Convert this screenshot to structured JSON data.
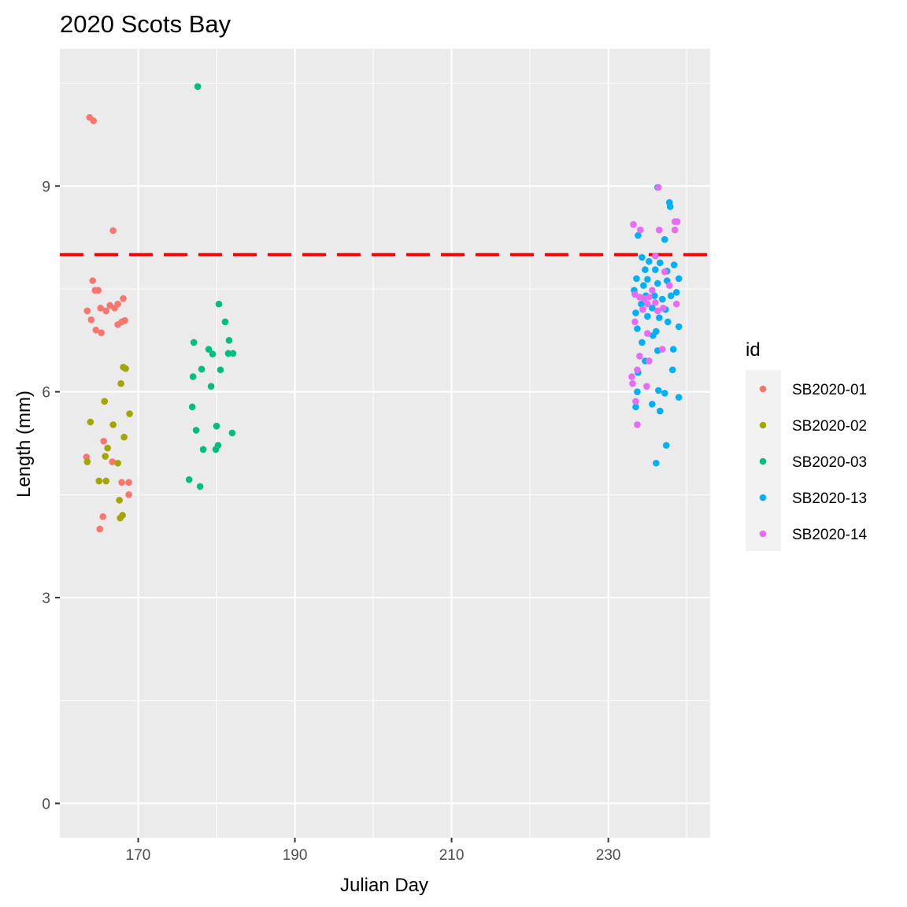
{
  "chart_data": {
    "type": "scatter",
    "title": "2020 Scots Bay",
    "xlabel": "Julian Day",
    "ylabel": "Length (mm)",
    "xlim": [
      160,
      243
    ],
    "ylim": [
      -0.5,
      11
    ],
    "x_ticks": [
      170,
      190,
      210,
      230
    ],
    "x_tick_labels": [
      "170",
      "190",
      "210",
      "230"
    ],
    "y_ticks": [
      0,
      3,
      6,
      9
    ],
    "y_tick_labels": [
      "0",
      "3",
      "6",
      "9"
    ],
    "grid": true,
    "panel_background": "#ebebeb",
    "reference_line": {
      "y": 8,
      "color": "#ff0000",
      "style": "dashed"
    },
    "legend": {
      "title": "id",
      "position": "right"
    },
    "series": [
      {
        "name": "SB2020-01",
        "color": "#f8766d",
        "points": [
          [
            163.8,
            10.0
          ],
          [
            164.3,
            9.95
          ],
          [
            166.8,
            8.35
          ],
          [
            164.2,
            7.62
          ],
          [
            164.5,
            7.48
          ],
          [
            164.9,
            7.48
          ],
          [
            163.5,
            7.18
          ],
          [
            164.0,
            7.05
          ],
          [
            165.2,
            7.22
          ],
          [
            165.9,
            7.18
          ],
          [
            166.4,
            7.26
          ],
          [
            167.0,
            7.22
          ],
          [
            167.4,
            7.28
          ],
          [
            168.1,
            7.36
          ],
          [
            164.6,
            6.9
          ],
          [
            165.3,
            6.86
          ],
          [
            167.4,
            6.98
          ],
          [
            167.9,
            7.02
          ],
          [
            168.3,
            7.04
          ],
          [
            163.4,
            5.05
          ],
          [
            166.7,
            4.98
          ],
          [
            165.6,
            5.28
          ],
          [
            167.9,
            4.68
          ],
          [
            168.8,
            4.68
          ],
          [
            168.8,
            4.5
          ],
          [
            165.5,
            4.18
          ],
          [
            165.1,
            4.0
          ]
        ]
      },
      {
        "name": "SB2020-02",
        "color": "#a3a500",
        "points": [
          [
            168.1,
            6.36
          ],
          [
            168.4,
            6.34
          ],
          [
            167.8,
            6.12
          ],
          [
            165.7,
            5.86
          ],
          [
            163.9,
            5.56
          ],
          [
            166.8,
            5.52
          ],
          [
            168.9,
            5.68
          ],
          [
            168.2,
            5.34
          ],
          [
            166.1,
            5.18
          ],
          [
            165.8,
            5.06
          ],
          [
            163.5,
            4.98
          ],
          [
            167.4,
            4.96
          ],
          [
            165.0,
            4.7
          ],
          [
            165.9,
            4.7
          ],
          [
            167.6,
            4.42
          ],
          [
            168.0,
            4.2
          ],
          [
            167.7,
            4.16
          ]
        ]
      },
      {
        "name": "SB2020-03",
        "color": "#00bf7d",
        "points": [
          [
            177.6,
            10.45
          ],
          [
            180.3,
            7.28
          ],
          [
            181.1,
            7.02
          ],
          [
            177.1,
            6.72
          ],
          [
            181.6,
            6.75
          ],
          [
            179.0,
            6.62
          ],
          [
            179.5,
            6.55
          ],
          [
            181.5,
            6.56
          ],
          [
            182.1,
            6.56
          ],
          [
            178.1,
            6.33
          ],
          [
            180.5,
            6.32
          ],
          [
            177.0,
            6.22
          ],
          [
            179.3,
            6.08
          ],
          [
            176.9,
            5.78
          ],
          [
            177.4,
            5.44
          ],
          [
            180.0,
            5.5
          ],
          [
            182.0,
            5.4
          ],
          [
            180.2,
            5.22
          ],
          [
            178.3,
            5.16
          ],
          [
            179.9,
            5.16
          ],
          [
            176.5,
            4.72
          ],
          [
            177.9,
            4.62
          ]
        ]
      },
      {
        "name": "SB2020-13",
        "color": "#00b0f6",
        "points": [
          [
            236.3,
            8.98
          ],
          [
            237.8,
            8.76
          ],
          [
            237.9,
            8.7
          ],
          [
            233.8,
            8.28
          ],
          [
            237.2,
            8.22
          ],
          [
            234.3,
            7.96
          ],
          [
            235.2,
            7.9
          ],
          [
            236.6,
            7.88
          ],
          [
            238.4,
            7.85
          ],
          [
            234.7,
            7.78
          ],
          [
            236.0,
            7.78
          ],
          [
            237.5,
            7.76
          ],
          [
            233.6,
            7.65
          ],
          [
            235.0,
            7.64
          ],
          [
            236.3,
            7.58
          ],
          [
            237.5,
            7.62
          ],
          [
            239.0,
            7.65
          ],
          [
            234.5,
            7.55
          ],
          [
            233.3,
            7.48
          ],
          [
            234.8,
            7.4
          ],
          [
            235.9,
            7.4
          ],
          [
            236.9,
            7.35
          ],
          [
            238.0,
            7.4
          ],
          [
            238.7,
            7.45
          ],
          [
            234.2,
            7.28
          ],
          [
            235.6,
            7.22
          ],
          [
            237.3,
            7.2
          ],
          [
            233.5,
            7.15
          ],
          [
            235.0,
            7.1
          ],
          [
            236.5,
            7.08
          ],
          [
            237.6,
            7.02
          ],
          [
            239.0,
            6.95
          ],
          [
            233.7,
            6.92
          ],
          [
            236.1,
            6.88
          ],
          [
            235.7,
            6.82
          ],
          [
            234.3,
            6.72
          ],
          [
            236.3,
            6.6
          ],
          [
            238.3,
            6.62
          ],
          [
            234.7,
            6.45
          ],
          [
            238.2,
            6.32
          ],
          [
            233.8,
            6.28
          ],
          [
            233.7,
            6.0
          ],
          [
            236.4,
            6.02
          ],
          [
            237.2,
            5.98
          ],
          [
            239.0,
            5.92
          ],
          [
            233.5,
            5.78
          ],
          [
            235.6,
            5.82
          ],
          [
            236.6,
            5.72
          ],
          [
            237.4,
            5.22
          ],
          [
            236.1,
            4.96
          ]
        ]
      },
      {
        "name": "SB2020-14",
        "color": "#e76bf3",
        "points": [
          [
            236.4,
            8.98
          ],
          [
            233.2,
            8.44
          ],
          [
            234.1,
            8.36
          ],
          [
            236.5,
            8.36
          ],
          [
            238.5,
            8.48
          ],
          [
            238.8,
            8.48
          ],
          [
            238.5,
            8.36
          ],
          [
            236.0,
            7.98
          ],
          [
            237.2,
            7.75
          ],
          [
            237.8,
            7.55
          ],
          [
            233.4,
            7.42
          ],
          [
            234.0,
            7.38
          ],
          [
            234.6,
            7.36
          ],
          [
            235.2,
            7.38
          ],
          [
            235.6,
            7.48
          ],
          [
            236.0,
            7.3
          ],
          [
            234.4,
            7.2
          ],
          [
            235.0,
            7.28
          ],
          [
            236.3,
            7.18
          ],
          [
            237.0,
            7.22
          ],
          [
            238.7,
            7.28
          ],
          [
            233.4,
            7.02
          ],
          [
            235.0,
            6.85
          ],
          [
            236.9,
            6.62
          ],
          [
            234.0,
            6.52
          ],
          [
            235.2,
            6.45
          ],
          [
            233.7,
            6.32
          ],
          [
            233.0,
            6.22
          ],
          [
            233.1,
            6.12
          ],
          [
            234.9,
            6.08
          ],
          [
            233.5,
            5.86
          ],
          [
            233.7,
            5.52
          ]
        ]
      }
    ]
  }
}
